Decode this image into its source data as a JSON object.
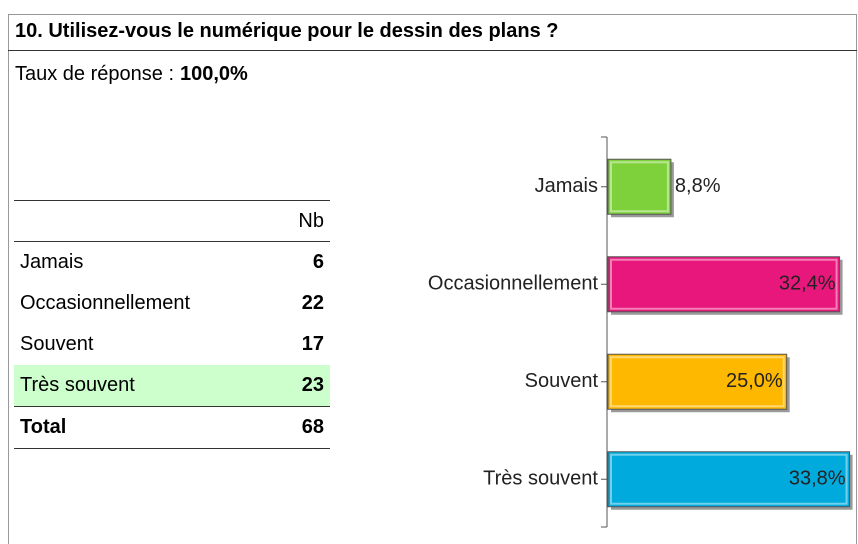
{
  "header": {
    "title": "10. Utilisez-vous le numérique pour le dessin des plans ?",
    "response_label": "Taux de réponse :",
    "response_value": "100,0%"
  },
  "table": {
    "column": "Nb",
    "rows": [
      {
        "label": "Jamais",
        "nb": 6
      },
      {
        "label": "Occasionnellement",
        "nb": 22
      },
      {
        "label": "Souvent",
        "nb": 17
      },
      {
        "label": "Très souvent",
        "nb": 23
      }
    ],
    "total": {
      "label": "Total",
      "nb": 68
    }
  },
  "chart_data": {
    "type": "hbar",
    "categories": [
      "Jamais",
      "Occasionnellement",
      "Souvent",
      "Très souvent"
    ],
    "values": [
      8.8,
      32.4,
      25.0,
      33.8
    ],
    "value_labels": [
      "8,8%",
      "32,4%",
      "25,0%",
      "33,8%"
    ],
    "colors": [
      "#7fd13b",
      "#e8177b",
      "#ffb800",
      "#00aadd"
    ],
    "xlim": [
      0,
      34
    ]
  }
}
